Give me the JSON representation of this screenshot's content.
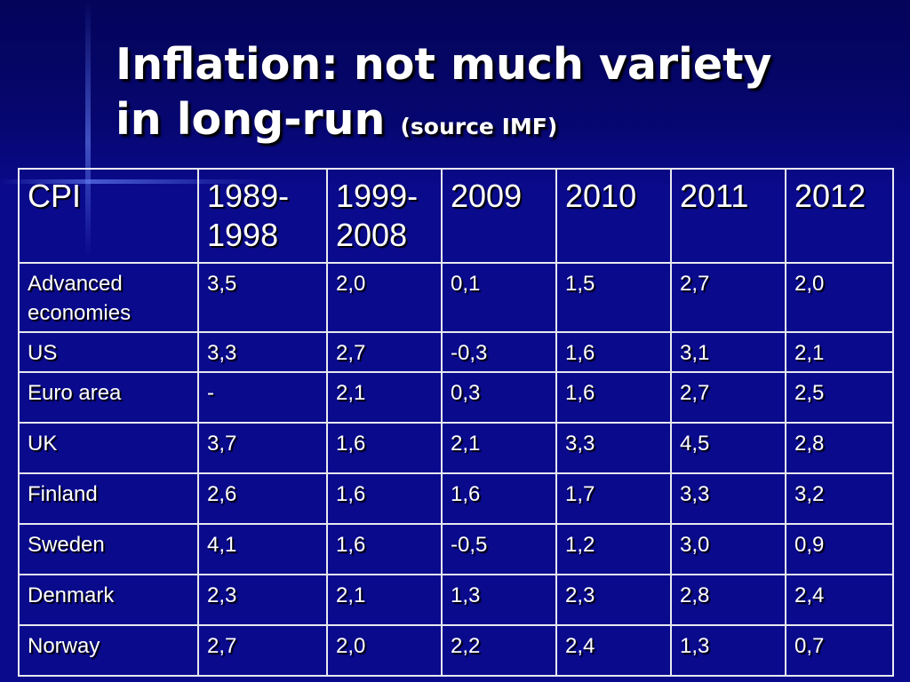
{
  "slide": {
    "title_line1": "Inflation: not much variety",
    "title_line2": "in long-run",
    "title_source": "(source IMF)"
  },
  "table": {
    "headers": [
      "CPI",
      "1989-1998",
      "1999-2008",
      "2009",
      "2010",
      "2011",
      "2012"
    ],
    "rows": [
      {
        "label": "Advanced economies",
        "values": [
          "3,5",
          "2,0",
          "0,1",
          "1,5",
          "2,7",
          "2,0"
        ]
      },
      {
        "label": "US",
        "values": [
          "3,3",
          "2,7",
          "-0,3",
          "1,6",
          "3,1",
          "2,1"
        ]
      },
      {
        "label": "Euro area",
        "values": [
          "-",
          "2,1",
          "0,3",
          "1,6",
          "2,7",
          "2,5"
        ]
      },
      {
        "label": "UK",
        "values": [
          "3,7",
          "1,6",
          "2,1",
          "3,3",
          "4,5",
          "2,8"
        ]
      },
      {
        "label": "Finland",
        "values": [
          "2,6",
          "1,6",
          "1,6",
          "1,7",
          "3,3",
          "3,2"
        ]
      },
      {
        "label": "Sweden",
        "values": [
          "4,1",
          "1,6",
          "-0,5",
          "1,2",
          "3,0",
          "0,9"
        ]
      },
      {
        "label": "Denmark",
        "values": [
          "2,3",
          "2,1",
          "1,3",
          "2,3",
          "2,8",
          "2,4"
        ]
      },
      {
        "label": "Norway",
        "values": [
          "2,7",
          "2,0",
          "2,2",
          "2,4",
          "1,3",
          "0,7"
        ]
      }
    ]
  },
  "colors": {
    "background": "#0a0a8c",
    "header_band": "#04045a",
    "text": "#ffffff",
    "grid": "#e8e8f0"
  }
}
